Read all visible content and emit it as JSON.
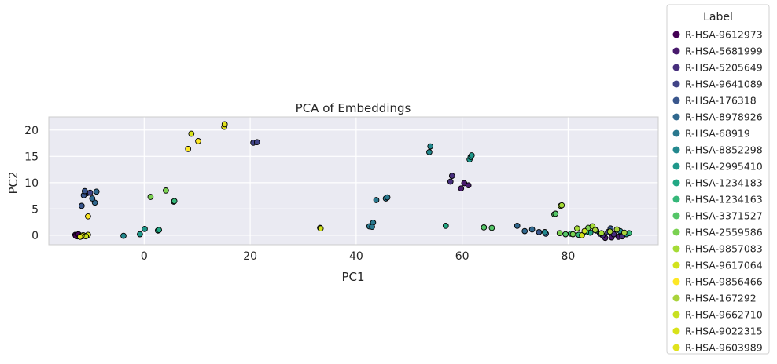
{
  "chart_data": {
    "type": "scatter",
    "title": "PCA of Embeddings",
    "xlabel": "PC1",
    "ylabel": "PC2",
    "xlim": [
      -18,
      97
    ],
    "ylim": [
      -1.8,
      22.5
    ],
    "xticks": [
      0,
      20,
      40,
      60,
      80
    ],
    "yticks": [
      0,
      5,
      10,
      15,
      20
    ],
    "grid": true,
    "legend_title": "Label",
    "legend_position": "outside-right",
    "colors": [
      "#440154",
      "#481a6c",
      "#472f7d",
      "#414487",
      "#39568c",
      "#31688e",
      "#2a788e",
      "#23888e",
      "#1f988b",
      "#22a884",
      "#35b779",
      "#54c568",
      "#7ad151",
      "#a5db36",
      "#d2e21b",
      "#fde725",
      "#a9d33a",
      "#c8e020",
      "#d8e219",
      "#e0e21c"
    ],
    "series": [
      {
        "name": "R-HSA-9612973",
        "color": "#440154",
        "points": [
          [
            -13.0,
            0.1
          ],
          [
            -12.6,
            -0.2
          ],
          [
            -12.2,
            0.0
          ],
          [
            -11.8,
            -0.2
          ],
          [
            -12.9,
            -0.1
          ],
          [
            -12.4,
            0.2
          ]
        ]
      },
      {
        "name": "R-HSA-5681999",
        "color": "#481a6c",
        "points": [
          [
            59.8,
            8.9
          ],
          [
            60.4,
            9.9
          ],
          [
            61.2,
            9.5
          ],
          [
            87.0,
            -0.5
          ],
          [
            88.2,
            -0.4
          ],
          [
            89.5,
            -0.3
          ]
        ]
      },
      {
        "name": "R-HSA-5205649",
        "color": "#472f7d",
        "points": [
          [
            57.8,
            10.2
          ],
          [
            58.1,
            11.3
          ],
          [
            86.5,
            0.0
          ],
          [
            88.6,
            0.2
          ],
          [
            90.2,
            -0.2
          ]
        ]
      },
      {
        "name": "R-HSA-9641089",
        "color": "#414487",
        "points": [
          [
            20.6,
            17.6
          ],
          [
            21.3,
            17.7
          ],
          [
            -10.8,
            8.0
          ],
          [
            -10.2,
            8.1
          ],
          [
            86.0,
            0.3
          ],
          [
            87.5,
            0.6
          ]
        ]
      },
      {
        "name": "R-HSA-176318",
        "color": "#39568c",
        "points": [
          [
            -11.4,
            7.6
          ],
          [
            -11.8,
            5.6
          ],
          [
            -11.2,
            8.4
          ],
          [
            74.5,
            0.6
          ],
          [
            75.8,
            0.3
          ],
          [
            88.0,
            1.3
          ]
        ]
      },
      {
        "name": "R-HSA-8978926",
        "color": "#31688e",
        "points": [
          [
            -9.3,
            6.2
          ],
          [
            -9.0,
            8.3
          ],
          [
            -9.8,
            7.0
          ],
          [
            71.8,
            0.8
          ],
          [
            73.2,
            1.1
          ],
          [
            70.4,
            1.8
          ]
        ]
      },
      {
        "name": "R-HSA-68919",
        "color": "#2a788e",
        "points": [
          [
            42.5,
            1.7
          ],
          [
            43.2,
            2.4
          ],
          [
            43.0,
            1.6
          ],
          [
            43.8,
            6.7
          ],
          [
            45.6,
            7.0
          ],
          [
            45.9,
            7.2
          ]
        ]
      },
      {
        "name": "R-HSA-8852298",
        "color": "#23888e",
        "points": [
          [
            53.8,
            15.8
          ],
          [
            54.0,
            16.9
          ],
          [
            -3.9,
            -0.1
          ],
          [
            75.6,
            0.6
          ],
          [
            89.8,
            0.8
          ]
        ]
      },
      {
        "name": "R-HSA-2995410",
        "color": "#1f988b",
        "points": [
          [
            61.4,
            14.4
          ],
          [
            61.6,
            14.9
          ],
          [
            61.8,
            15.2
          ],
          [
            -0.8,
            0.2
          ],
          [
            0.1,
            1.2
          ],
          [
            91.0,
            0.2
          ]
        ]
      },
      {
        "name": "R-HSA-1234183",
        "color": "#22a884",
        "points": [
          [
            2.6,
            0.9
          ],
          [
            2.8,
            1.0
          ],
          [
            56.9,
            1.8
          ],
          [
            84.2,
            0.5
          ],
          [
            85.3,
            0.9
          ]
        ]
      },
      {
        "name": "R-HSA-1234163",
        "color": "#35b779",
        "points": [
          [
            5.6,
            6.4
          ],
          [
            5.7,
            6.5
          ],
          [
            80.5,
            0.3
          ],
          [
            82.0,
            0.1
          ],
          [
            83.4,
            0.6
          ],
          [
            91.5,
            0.4
          ]
        ]
      },
      {
        "name": "R-HSA-3371527",
        "color": "#54c568",
        "points": [
          [
            77.4,
            4.0
          ],
          [
            77.6,
            4.1
          ],
          [
            64.1,
            1.5
          ],
          [
            65.6,
            1.4
          ],
          [
            79.5,
            0.2
          ]
        ]
      },
      {
        "name": "R-HSA-2559586",
        "color": "#7ad151",
        "points": [
          [
            1.2,
            7.3
          ],
          [
            4.1,
            8.5
          ],
          [
            78.4,
            0.4
          ],
          [
            80.9,
            0.2
          ],
          [
            83.8,
            1.4
          ]
        ]
      },
      {
        "name": "R-HSA-9857083",
        "color": "#a5db36",
        "points": [
          [
            78.6,
            5.6
          ],
          [
            78.8,
            5.7
          ],
          [
            81.7,
            1.3
          ],
          [
            84.6,
            1.7
          ],
          [
            86.3,
            0.4
          ]
        ]
      },
      {
        "name": "R-HSA-9617064",
        "color": "#d2e21b",
        "points": [
          [
            33.2,
            1.4
          ],
          [
            33.3,
            1.3
          ],
          [
            -10.6,
            0.1
          ],
          [
            82.6,
            0.0
          ]
        ]
      },
      {
        "name": "R-HSA-9856466",
        "color": "#fde725",
        "points": [
          [
            8.3,
            16.4
          ],
          [
            10.2,
            17.9
          ],
          [
            -11.3,
            -0.1
          ],
          [
            -10.6,
            3.6
          ]
        ]
      },
      {
        "name": "R-HSA-167292",
        "color": "#a9d33a",
        "points": [
          [
            85.1,
            1.0
          ],
          [
            87.9,
            0.7
          ],
          [
            89.2,
            1.1
          ],
          [
            90.6,
            0.5
          ]
        ]
      },
      {
        "name": "R-HSA-9662710",
        "color": "#c8e020",
        "points": [
          [
            -11.5,
            0.0
          ],
          [
            -11.0,
            -0.2
          ],
          [
            83.1,
            0.8
          ]
        ]
      },
      {
        "name": "R-HSA-9022315",
        "color": "#d8e219",
        "points": [
          [
            8.9,
            19.3
          ],
          [
            -11.8,
            -0.1
          ]
        ]
      },
      {
        "name": "R-HSA-9603989",
        "color": "#e0e21c",
        "points": [
          [
            15.1,
            20.6
          ],
          [
            15.2,
            21.1
          ],
          [
            -12.1,
            -0.3
          ]
        ]
      }
    ]
  }
}
